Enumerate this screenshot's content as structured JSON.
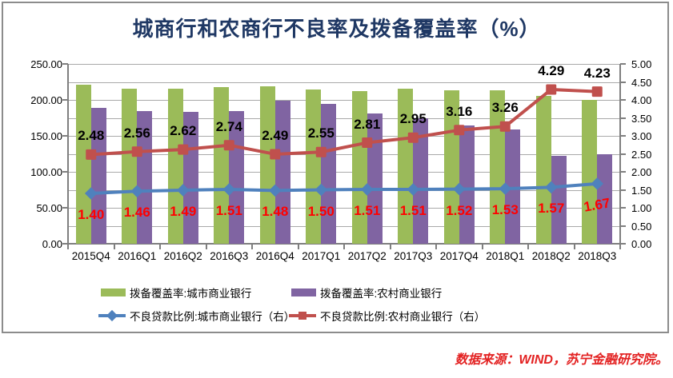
{
  "title": "城商行和农商行不良率及拨备覆盖率（%）",
  "source_note": "数据来源：WIND，苏宁金融研究院。",
  "colors": {
    "title": "#1F3864",
    "border": "#8C8C8C",
    "gridline": "#A9A9A9",
    "axis_line": "#7F7F7F",
    "bar_city": "#9BBB59",
    "bar_rural": "#8064A2",
    "line_city": "#4F81BD",
    "line_rural": "#C0504D",
    "label_red": "#FF0000",
    "label_black": "#000000",
    "source_note": "#E32222"
  },
  "chart_data": {
    "type": "bar",
    "subtype": "combo-bar-line-dual-axis",
    "title": "城商行和农商行不良率及拨备覆盖率（%）",
    "categories": [
      "2015Q4",
      "2016Q1",
      "2016Q2",
      "2016Q3",
      "2016Q4",
      "2017Q1",
      "2017Q2",
      "2017Q3",
      "2017Q4",
      "2018Q1",
      "2018Q2",
      "2018Q3"
    ],
    "series": [
      {
        "name": "拨备覆盖率:城市商业银行",
        "kind": "bar",
        "axis": "left",
        "color": "#9BBB59",
        "values": [
          221,
          216,
          216,
          218,
          219,
          215,
          212,
          216,
          213,
          213,
          206,
          200
        ],
        "show_labels": false
      },
      {
        "name": "拨备覆盖率:农村商业银行",
        "kind": "bar",
        "axis": "left",
        "color": "#8064A2",
        "values": [
          189,
          184,
          183,
          185,
          199,
          194,
          181,
          174,
          164,
          159,
          122,
          125
        ],
        "show_labels": false
      },
      {
        "name": "不良贷款比例:城市商业银行（右）",
        "kind": "line",
        "axis": "right",
        "color": "#4F81BD",
        "marker": "diamond",
        "label_color": "#FF0000",
        "label_side": "below",
        "values": [
          1.4,
          1.46,
          1.49,
          1.51,
          1.48,
          1.5,
          1.51,
          1.51,
          1.52,
          1.53,
          1.57,
          1.67
        ],
        "show_labels": true
      },
      {
        "name": "不良贷款比例:农村商业银行（右）",
        "kind": "line",
        "axis": "right",
        "color": "#C0504D",
        "marker": "square",
        "label_color": "#000000",
        "label_side": "above",
        "values": [
          2.48,
          2.56,
          2.62,
          2.74,
          2.49,
          2.55,
          2.81,
          2.95,
          3.16,
          3.26,
          4.29,
          4.23
        ],
        "show_labels": true
      }
    ],
    "left_axis": {
      "min": 0,
      "max": 250,
      "label_step": 50,
      "tick_labels": [
        "250.00",
        "200.00",
        "150.00",
        "100.00",
        "50.00",
        "0.00"
      ]
    },
    "right_axis": {
      "min": 0,
      "max": 5,
      "label_step": 0.5,
      "tick_labels": [
        "5.00",
        "4.50",
        "4.00",
        "3.50",
        "3.00",
        "2.50",
        "2.00",
        "1.50",
        "1.00",
        "0.50",
        "0.00"
      ]
    },
    "grid": "horizontal lines every 25 (left axis) / 0.50 (right axis)",
    "legend_position": "bottom"
  }
}
